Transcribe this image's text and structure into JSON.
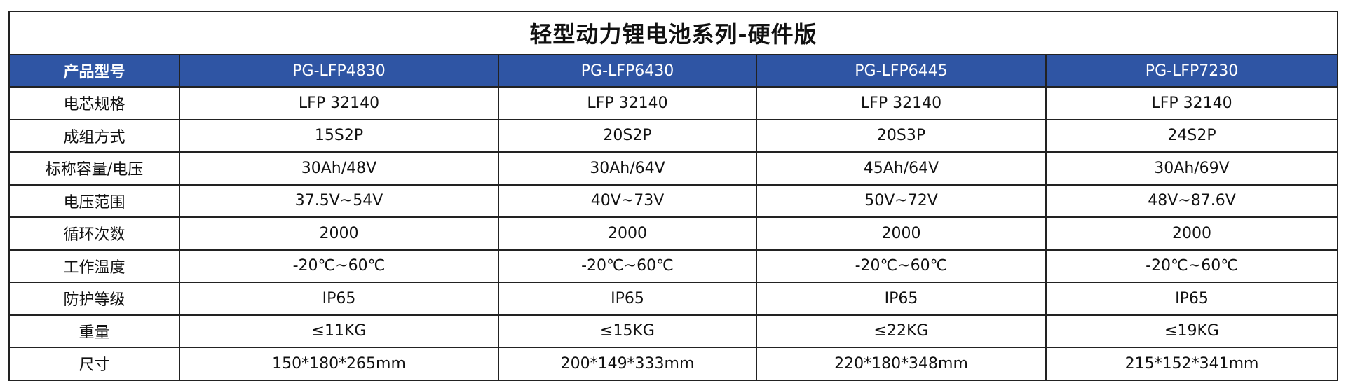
{
  "title": "轻型动力锂电池系列-硬件版",
  "header": {
    "label": "产品型号",
    "models": [
      "PG-LFP4830",
      "PG-LFP6430",
      "PG-LFP6445",
      "PG-LFP7230"
    ]
  },
  "colors": {
    "header_bg": "#2f55a4",
    "header_text": "#ffffff"
  },
  "rows": [
    {
      "label": "电芯规格",
      "values": [
        "LFP 32140",
        "LFP 32140",
        "LFP 32140",
        "LFP 32140"
      ]
    },
    {
      "label": "成组方式",
      "values": [
        "15S2P",
        "20S2P",
        "20S3P",
        "24S2P"
      ]
    },
    {
      "label": "标称容量/电压",
      "values": [
        "30Ah/48V",
        "30Ah/64V",
        "45Ah/64V",
        "30Ah/69V"
      ]
    },
    {
      "label": "电压范围",
      "values": [
        "37.5V~54V",
        "40V~73V",
        "50V~72V",
        "48V~87.6V"
      ]
    },
    {
      "label": "循环次数",
      "values": [
        "2000",
        "2000",
        "2000",
        "2000"
      ]
    },
    {
      "label": "工作温度",
      "values": [
        "-20℃~60℃",
        "-20℃~60℃",
        "-20℃~60℃",
        "-20℃~60℃"
      ]
    },
    {
      "label": "防护等级",
      "values": [
        "IP65",
        "IP65",
        "IP65",
        "IP65"
      ]
    },
    {
      "label": "重量",
      "values": [
        "≤11KG",
        "≤15KG",
        "≤22KG",
        "≤19KG"
      ]
    },
    {
      "label": "尺寸",
      "values": [
        "150*180*265mm",
        "200*149*333mm",
        "220*180*348mm",
        "215*152*341mm"
      ]
    }
  ]
}
